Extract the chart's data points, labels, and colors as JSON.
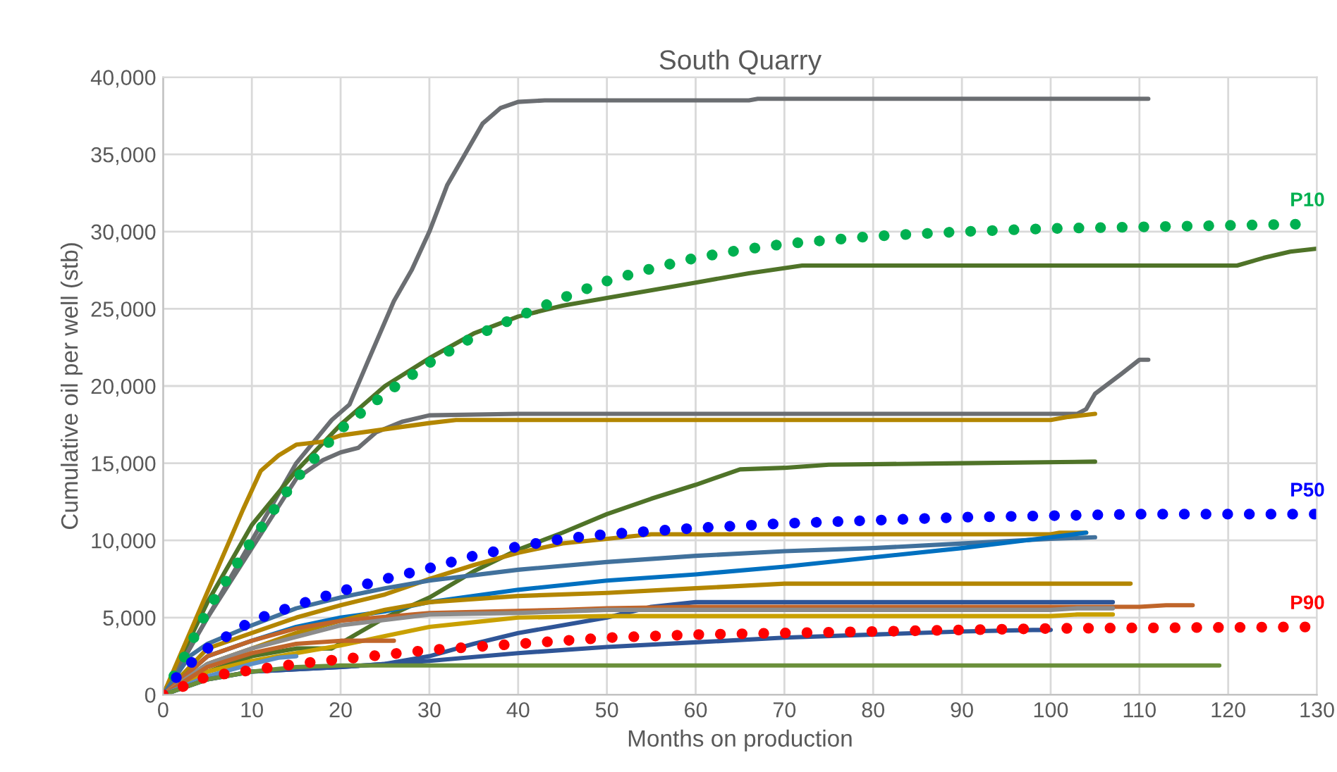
{
  "chart_data": {
    "type": "line",
    "title": "South Quarry",
    "xlabel": "Months on production",
    "ylabel": "Cumulative oil per well (stb)",
    "xlim": [
      0,
      130
    ],
    "ylim": [
      0,
      40000
    ],
    "xticks": [
      0,
      10,
      20,
      30,
      40,
      50,
      60,
      70,
      80,
      90,
      100,
      110,
      120,
      130
    ],
    "yticks": [
      0,
      {
        "value": 5000,
        "label": "5,000"
      },
      {
        "value": 10000,
        "label": "10,000"
      },
      {
        "value": 15000,
        "label": "15,000"
      },
      {
        "value": 20000,
        "label": "20,000"
      },
      {
        "value": 25000,
        "label": "25,000"
      },
      {
        "value": 30000,
        "label": "30,000"
      },
      {
        "value": 35000,
        "label": "35,000"
      },
      {
        "value": 40000,
        "label": "40,000"
      }
    ],
    "grid": true,
    "legend": false,
    "line_style": "solid",
    "series": [
      {
        "color": "#6b6e72",
        "x": [
          0,
          5,
          10,
          15,
          19,
          21,
          23,
          26,
          28,
          30,
          32,
          34,
          36,
          38,
          40,
          43,
          66,
          67,
          111
        ],
        "values": [
          0,
          5000,
          10000,
          15000,
          17800,
          18800,
          21500,
          25500,
          27500,
          30000,
          33000,
          35000,
          37000,
          38000,
          38400,
          38500,
          38500,
          38600,
          38600
        ]
      },
      {
        "color": "#4f7328",
        "x": [
          0,
          5,
          10,
          15,
          20,
          25,
          30,
          35,
          40,
          45,
          50,
          60,
          66,
          72,
          121,
          124,
          127,
          130
        ],
        "values": [
          0,
          6000,
          11000,
          14500,
          17500,
          20000,
          21800,
          23400,
          24500,
          25200,
          25700,
          26700,
          27300,
          27800,
          27800,
          28300,
          28700,
          28900
        ]
      },
      {
        "color": "#6b6e72",
        "x": [
          0,
          5,
          10,
          15,
          18,
          20,
          22,
          24,
          27,
          30,
          40,
          103,
          104,
          105,
          108,
          110,
          111
        ],
        "values": [
          0,
          5000,
          9500,
          14000,
          15200,
          15700,
          16000,
          17000,
          17700,
          18100,
          18200,
          18200,
          18500,
          19500,
          20800,
          21700,
          21700
        ]
      },
      {
        "color": "#b38600",
        "x": [
          0,
          3,
          6,
          9,
          11,
          13,
          15,
          18,
          20,
          25,
          30,
          33,
          100,
          102,
          105
        ],
        "values": [
          0,
          4000,
          8000,
          12000,
          14500,
          15500,
          16200,
          16400,
          16800,
          17200,
          17600,
          17800,
          17800,
          18000,
          18200
        ]
      },
      {
        "color": "#4f7328",
        "x": [
          0,
          5,
          10,
          15,
          19,
          22,
          25,
          30,
          35,
          40,
          45,
          50,
          55,
          60,
          65,
          70,
          75,
          90,
          105
        ],
        "values": [
          0,
          1500,
          2500,
          3000,
          3000,
          4000,
          5000,
          6300,
          8000,
          9400,
          10500,
          11700,
          12700,
          13600,
          14600,
          14700,
          14900,
          15000,
          15100
        ]
      },
      {
        "color": "#b38600",
        "x": [
          0,
          5,
          10,
          15,
          20,
          25,
          30,
          35,
          40,
          45,
          50,
          55,
          100,
          101,
          104
        ],
        "values": [
          0,
          3000,
          4000,
          5000,
          5800,
          6500,
          7500,
          8400,
          9200,
          9800,
          10100,
          10400,
          10400,
          10500,
          10500
        ]
      },
      {
        "color": "#41719c",
        "x": [
          0,
          3,
          5,
          10,
          15,
          20,
          25,
          30,
          40,
          50,
          60,
          70,
          80,
          90,
          100,
          105
        ],
        "values": [
          0,
          2500,
          3300,
          4500,
          5600,
          6300,
          6900,
          7400,
          8100,
          8600,
          9000,
          9300,
          9500,
          9800,
          10100,
          10200
        ]
      },
      {
        "color": "#0070c0",
        "x": [
          0,
          5,
          10,
          15,
          20,
          25,
          30,
          40,
          50,
          60,
          70,
          80,
          90,
          100,
          104
        ],
        "values": [
          0,
          2500,
          3500,
          4400,
          5000,
          5400,
          6000,
          6800,
          7400,
          7800,
          8300,
          8900,
          9500,
          10200,
          10500
        ]
      },
      {
        "color": "#b38600",
        "x": [
          0,
          5,
          10,
          15,
          20,
          25,
          30,
          40,
          50,
          60,
          70,
          109
        ],
        "values": [
          0,
          2000,
          3000,
          4000,
          4800,
          5500,
          6000,
          6400,
          6600,
          6900,
          7200,
          7200
        ]
      },
      {
        "color": "#2f5597",
        "x": [
          0,
          5,
          10,
          20,
          25,
          30,
          35,
          40,
          45,
          50,
          55,
          60,
          107
        ],
        "values": [
          0,
          1000,
          1500,
          1800,
          2000,
          2500,
          3300,
          4000,
          4500,
          5000,
          5700,
          6000,
          6000
        ]
      },
      {
        "color": "#c0652a",
        "x": [
          0,
          5,
          10,
          15,
          20,
          30,
          45,
          50,
          60,
          110,
          113,
          116
        ],
        "values": [
          0,
          2500,
          3500,
          4300,
          4800,
          5300,
          5500,
          5600,
          5700,
          5700,
          5800,
          5800
        ]
      },
      {
        "color": "#8c8c8c",
        "x": [
          0,
          5,
          10,
          20,
          30,
          40,
          50,
          100,
          103,
          107
        ],
        "values": [
          0,
          2000,
          3000,
          4500,
          5200,
          5300,
          5500,
          5500,
          5600,
          5600
        ]
      },
      {
        "color": "#c9a000",
        "x": [
          0,
          5,
          10,
          20,
          25,
          30,
          35,
          40,
          50,
          100,
          103,
          107
        ],
        "values": [
          0,
          1500,
          2200,
          3200,
          3800,
          4400,
          4700,
          5000,
          5100,
          5100,
          5200,
          5200
        ]
      },
      {
        "color": "#c0652a",
        "x": [
          0,
          5,
          10,
          15,
          20,
          26
        ],
        "values": [
          0,
          1800,
          2700,
          3300,
          3500,
          3500
        ]
      },
      {
        "color": "#5b8fc7",
        "x": [
          0,
          5,
          10,
          13,
          15
        ],
        "values": [
          0,
          1200,
          2000,
          2400,
          2500
        ]
      },
      {
        "color": "#2f5597",
        "x": [
          0,
          5,
          10,
          20,
          30,
          40,
          50,
          60,
          70,
          80,
          90,
          98,
          100
        ],
        "values": [
          0,
          1000,
          1500,
          1800,
          2200,
          2700,
          3100,
          3400,
          3700,
          3900,
          4100,
          4200,
          4200
        ]
      },
      {
        "color": "#6a8f3a",
        "x": [
          0,
          5,
          10,
          15,
          20,
          119
        ],
        "values": [
          0,
          1000,
          1500,
          1800,
          1900,
          1900
        ]
      },
      {
        "name": "P10",
        "color": "#00b050",
        "line_style": "dotted",
        "x": [
          0,
          2,
          5,
          10,
          15,
          20,
          25,
          30,
          35,
          40,
          45,
          50,
          55,
          60,
          65,
          70,
          80,
          90,
          100,
          110,
          130
        ],
        "values": [
          0,
          2000,
          5500,
          10000,
          14000,
          17200,
          19500,
          21500,
          23200,
          24500,
          25700,
          26800,
          27600,
          28300,
          28800,
          29200,
          29700,
          30000,
          30200,
          30300,
          30500
        ]
      },
      {
        "name": "P50",
        "color": "#0000ff",
        "line_style": "dotted",
        "x": [
          0,
          2,
          5,
          10,
          15,
          20,
          25,
          30,
          35,
          40,
          45,
          50,
          60,
          70,
          80,
          90,
          100,
          110,
          130
        ],
        "values": [
          0,
          1500,
          3000,
          4800,
          5800,
          6700,
          7500,
          8200,
          9000,
          9600,
          10100,
          10400,
          10800,
          11100,
          11300,
          11500,
          11600,
          11700,
          11700
        ]
      },
      {
        "name": "P90",
        "color": "#ff0000",
        "line_style": "dotted",
        "x": [
          0,
          5,
          10,
          15,
          20,
          25,
          30,
          40,
          50,
          60,
          70,
          80,
          90,
          100,
          130
        ],
        "values": [
          0,
          1200,
          1600,
          2000,
          2300,
          2600,
          2900,
          3300,
          3700,
          3900,
          4000,
          4100,
          4200,
          4300,
          4400
        ]
      }
    ]
  }
}
